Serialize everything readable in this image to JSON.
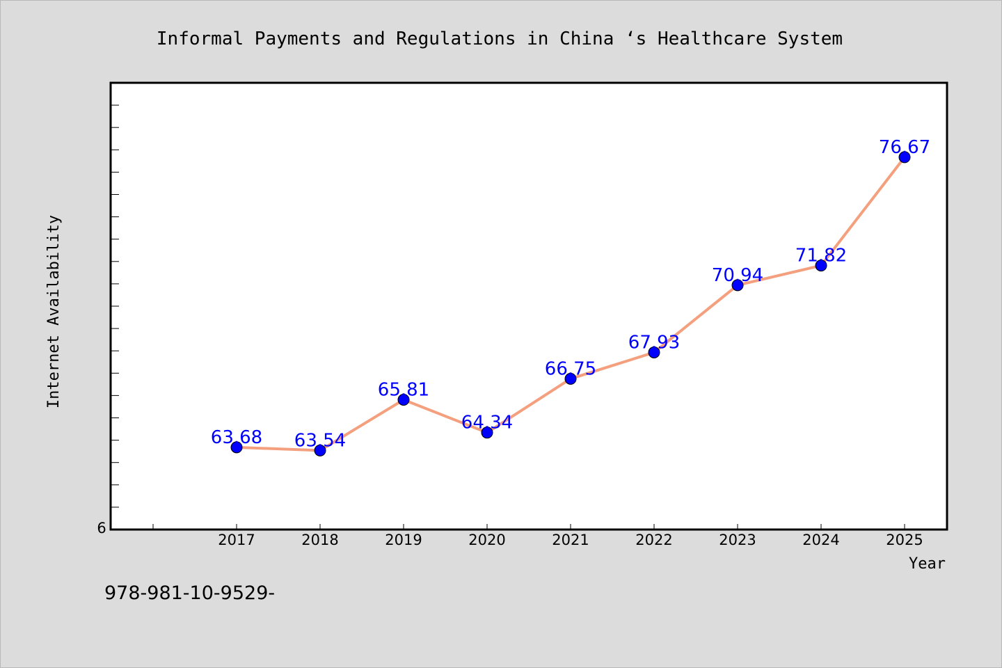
{
  "chart_data": {
    "type": "line",
    "title": "Informal Payments and Regulations in China ‘s Healthcare System",
    "xlabel": "Year",
    "ylabel": "Internet Availability",
    "categories": [
      "2017",
      "2018",
      "2019",
      "2020",
      "2021",
      "2022",
      "2023",
      "2024",
      "2025"
    ],
    "series": [
      {
        "values": [
          63.68,
          63.54,
          65.81,
          64.34,
          66.75,
          67.93,
          70.94,
          71.82,
          76.67
        ],
        "labels": [
          "63.68",
          "63.54",
          "65.81",
          "64.34",
          "66.75",
          "67.93",
          "70.94",
          "71.82",
          "76.67"
        ],
        "line_color": "#f4a07e",
        "marker_color": "#0000ff"
      }
    ],
    "ylim": [
      60,
      80
    ],
    "y_tick_label": "6",
    "grid": false,
    "legend": "none"
  },
  "footnote": "978-981-10-9529-"
}
